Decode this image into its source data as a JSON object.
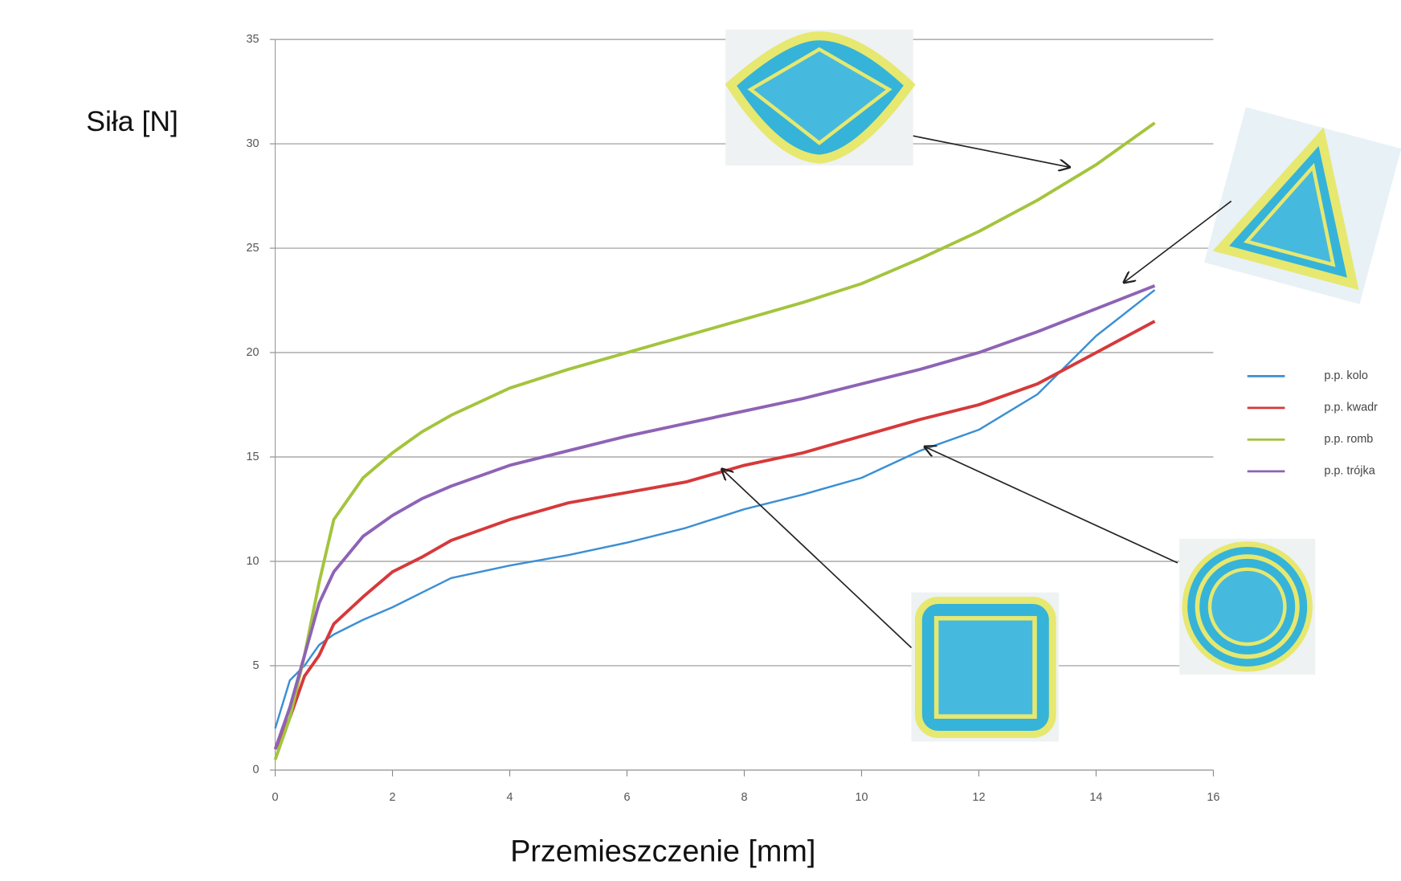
{
  "chart_data": {
    "type": "line",
    "y_label": "Siła [N]",
    "x_label": "Przemieszczenie [mm]",
    "x": [
      0,
      0.25,
      0.5,
      0.75,
      1,
      1.5,
      2,
      2.5,
      3,
      4,
      5,
      6,
      7,
      8,
      9,
      10,
      11,
      12,
      13,
      14,
      15
    ],
    "series": [
      {
        "name": "p.p. kolo",
        "color": "#3b8fd4",
        "values": [
          2,
          4.3,
          5,
          6,
          6.5,
          7.2,
          7.8,
          8.5,
          9.2,
          9.8,
          10.3,
          10.9,
          11.6,
          12.5,
          13.2,
          14,
          15.3,
          16.3,
          18,
          20.8,
          23
        ]
      },
      {
        "name": "p.p. kwadr",
        "color": "#d6393a",
        "values": [
          1,
          2.5,
          4.5,
          5.5,
          7,
          8.3,
          9.5,
          10.2,
          11,
          12,
          12.8,
          13.3,
          13.8,
          14.6,
          15.2,
          16,
          16.8,
          17.5,
          18.5,
          20,
          21.5
        ]
      },
      {
        "name": "p.p. romb",
        "color": "#a4c43d",
        "values": [
          0.5,
          2.5,
          5.5,
          9,
          12,
          14,
          15.2,
          16.2,
          17,
          18.3,
          19.2,
          20,
          20.8,
          21.6,
          22.4,
          23.3,
          24.5,
          25.8,
          27.3,
          29,
          31
        ]
      },
      {
        "name": "p.p. trójka",
        "color": "#8e63b5",
        "values": [
          1,
          3,
          5.5,
          8,
          9.5,
          11.2,
          12.2,
          13,
          13.6,
          14.6,
          15.3,
          16,
          16.6,
          17.2,
          17.8,
          18.5,
          19.2,
          20,
          21,
          22.1,
          23.2
        ]
      }
    ],
    "xlim": [
      0,
      16
    ],
    "xticks": [
      0,
      2,
      4,
      6,
      8,
      10,
      12,
      14,
      16
    ],
    "ylim": [
      0,
      35
    ],
    "yticks": [
      0,
      5,
      10,
      15,
      20,
      25,
      30,
      35
    ],
    "grid": true,
    "legend": "right"
  }
}
